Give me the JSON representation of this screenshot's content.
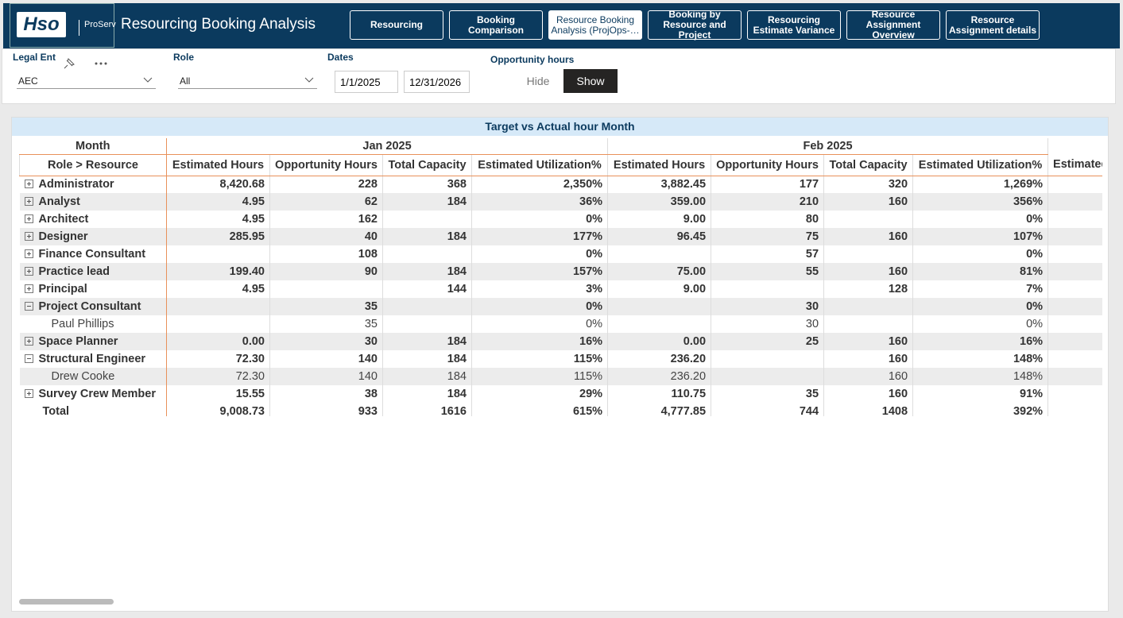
{
  "header": {
    "logo": "Hso",
    "brand": "ProServ",
    "title": "Resourcing Booking Analysis",
    "tabs": [
      "Resourcing",
      "Booking Comparison",
      "Resource Booking Analysis (ProjOps-…",
      "Booking by Resource and Project",
      "Resourcing Estimate Variance",
      "Resource Assignment Overview",
      "Resource Assignment details"
    ],
    "active_tab": 2
  },
  "filters": {
    "legal_entity": {
      "label": "Legal Ent",
      "value": "AEC"
    },
    "role": {
      "label": "Role",
      "value": "All"
    },
    "dates": {
      "label": "Dates",
      "start": "1/1/2025",
      "end": "12/31/2026"
    },
    "opportunity_hours": {
      "label": "Opportunity hours",
      "options": [
        "Hide",
        "Show"
      ],
      "selected": 1
    }
  },
  "table": {
    "title": "Target vs Actual hour Month",
    "month_label": "Month",
    "row_label": "Role > Resource",
    "months": [
      "Jan 2025",
      "Feb 2025"
    ],
    "columns": [
      "Estimated Hours",
      "Opportunity Hours",
      "Total Capacity",
      "Estimated Utilization%"
    ],
    "next_column": "Estimated Hours",
    "rows": [
      {
        "label": "Administrator",
        "level": 0,
        "expanded": false,
        "cells": [
          "8,420.68",
          "228",
          "368",
          "2,350%",
          "3,882.45",
          "177",
          "320",
          "1,269%"
        ]
      },
      {
        "label": "Analyst",
        "level": 0,
        "expanded": false,
        "cells": [
          "4.95",
          "62",
          "184",
          "36%",
          "359.00",
          "210",
          "160",
          "356%"
        ]
      },
      {
        "label": "Architect",
        "level": 0,
        "expanded": false,
        "cells": [
          "4.95",
          "162",
          null,
          "0%",
          "9.00",
          "80",
          null,
          "0%"
        ]
      },
      {
        "label": "Designer",
        "level": 0,
        "expanded": false,
        "cells": [
          "285.95",
          "40",
          "184",
          "177%",
          "96.45",
          "75",
          "160",
          "107%"
        ]
      },
      {
        "label": "Finance Consultant",
        "level": 0,
        "expanded": false,
        "cells": [
          null,
          "108",
          null,
          "0%",
          null,
          "57",
          null,
          "0%"
        ]
      },
      {
        "label": "Practice lead",
        "level": 0,
        "expanded": false,
        "cells": [
          "199.40",
          "90",
          "184",
          "157%",
          "75.00",
          "55",
          "160",
          "81%"
        ]
      },
      {
        "label": "Principal",
        "level": 0,
        "expanded": false,
        "cells": [
          "4.95",
          null,
          "144",
          "3%",
          "9.00",
          null,
          "128",
          "7%"
        ]
      },
      {
        "label": "Project Consultant",
        "level": 0,
        "expanded": true,
        "cells": [
          null,
          "35",
          null,
          "0%",
          null,
          "30",
          null,
          "0%"
        ]
      },
      {
        "label": "Paul Phillips",
        "level": 1,
        "cells": [
          null,
          "35",
          null,
          "0%",
          null,
          "30",
          null,
          "0%"
        ]
      },
      {
        "label": "Space Planner",
        "level": 0,
        "expanded": false,
        "cells": [
          "0.00",
          "30",
          "184",
          "16%",
          "0.00",
          "25",
          "160",
          "16%"
        ]
      },
      {
        "label": "Structural Engineer",
        "level": 0,
        "expanded": true,
        "cells": [
          "72.30",
          "140",
          "184",
          "115%",
          "236.20",
          null,
          "160",
          "148%"
        ]
      },
      {
        "label": "Drew Cooke",
        "level": 1,
        "cells": [
          "72.30",
          "140",
          "184",
          "115%",
          "236.20",
          null,
          "160",
          "148%"
        ]
      },
      {
        "label": "Survey Crew Member",
        "level": 0,
        "expanded": false,
        "cells": [
          "15.55",
          "38",
          "184",
          "29%",
          "110.75",
          "35",
          "160",
          "91%"
        ]
      }
    ],
    "total": {
      "label": "Total",
      "cells": [
        "9,008.73",
        "933",
        "1616",
        "615%",
        "4,777.85",
        "744",
        "1408",
        "392%"
      ]
    }
  }
}
